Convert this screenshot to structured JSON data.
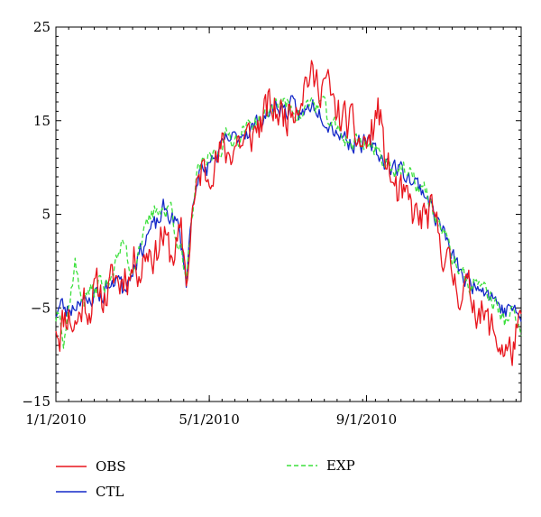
{
  "chart_data": {
    "type": "line",
    "title": "",
    "xlabel": "",
    "ylabel": "",
    "x_ticks": [
      "1/1/2010",
      "5/1/2010",
      "9/1/2010"
    ],
    "x_tick_days": [
      0,
      120,
      243
    ],
    "y_ticks": [
      25,
      15,
      5,
      -5,
      -15
    ],
    "y_tick_labels": [
      "25",
      "15",
      "5",
      "−5",
      "−15"
    ],
    "xlim": [
      "1/1/2010",
      "12/31/2010"
    ],
    "ylim": [
      -15,
      25
    ],
    "grid": false,
    "legend": "bottom",
    "series": [
      {
        "name": "OBS",
        "color": "#e8141c",
        "dash": "solid",
        "anchors": [
          [
            0,
            -6.5
          ],
          [
            3,
            -7.5
          ],
          [
            6,
            -6
          ],
          [
            10,
            -5.5
          ],
          [
            14,
            -7
          ],
          [
            18,
            -6
          ],
          [
            22,
            -4
          ],
          [
            26,
            -5
          ],
          [
            30,
            -3.5
          ],
          [
            34,
            -3
          ],
          [
            38,
            -4
          ],
          [
            42,
            -3
          ],
          [
            46,
            -1.5
          ],
          [
            50,
            -2.5
          ],
          [
            54,
            -1
          ],
          [
            58,
            -1.5
          ],
          [
            62,
            0.5
          ],
          [
            66,
            -1
          ],
          [
            70,
            1
          ],
          [
            74,
            1.5
          ],
          [
            78,
            0.5
          ],
          [
            82,
            3
          ],
          [
            86,
            2
          ],
          [
            90,
            0.5
          ],
          [
            94,
            1.5
          ],
          [
            98,
            2.5
          ],
          [
            100,
            0.5
          ],
          [
            103,
            -2
          ],
          [
            106,
            5
          ],
          [
            110,
            7
          ],
          [
            114,
            10
          ],
          [
            118,
            9
          ],
          [
            122,
            11
          ],
          [
            126,
            10.5
          ],
          [
            130,
            12
          ],
          [
            134,
            11.5
          ],
          [
            138,
            12
          ],
          [
            142,
            13
          ],
          [
            146,
            12.5
          ],
          [
            150,
            13
          ],
          [
            154,
            13.5
          ],
          [
            158,
            14.5
          ],
          [
            162,
            15
          ],
          [
            166,
            16.5
          ],
          [
            170,
            16
          ],
          [
            174,
            16
          ],
          [
            178,
            15.5
          ],
          [
            182,
            16
          ],
          [
            186,
            17
          ],
          [
            190,
            17.5
          ],
          [
            194,
            19
          ],
          [
            198,
            20
          ],
          [
            202,
            19
          ],
          [
            206,
            19
          ],
          [
            210,
            19.5
          ],
          [
            214,
            18
          ],
          [
            218,
            16
          ],
          [
            222,
            15.5
          ],
          [
            226,
            15
          ],
          [
            230,
            14.5
          ],
          [
            234,
            13.5
          ],
          [
            238,
            12.5
          ],
          [
            242,
            12.5
          ],
          [
            246,
            13
          ],
          [
            250,
            15
          ],
          [
            252,
            16.5
          ],
          [
            254,
            15
          ],
          [
            256,
            12
          ],
          [
            260,
            10
          ],
          [
            264,
            8
          ],
          [
            268,
            7
          ],
          [
            272,
            6.5
          ],
          [
            276,
            6
          ],
          [
            280,
            5
          ],
          [
            284,
            4.5
          ],
          [
            288,
            4.5
          ],
          [
            292,
            5
          ],
          [
            296,
            4
          ],
          [
            300,
            2.5
          ],
          [
            304,
            1
          ],
          [
            308,
            -1
          ],
          [
            312,
            -2
          ],
          [
            316,
            -3
          ],
          [
            320,
            -3
          ],
          [
            324,
            -3.5
          ],
          [
            328,
            -4.5
          ],
          [
            332,
            -5
          ],
          [
            336,
            -6.5
          ],
          [
            340,
            -7
          ],
          [
            344,
            -8
          ],
          [
            348,
            -9
          ],
          [
            352,
            -9.5
          ],
          [
            356,
            -10
          ],
          [
            360,
            -8
          ],
          [
            364,
            -7.5
          ]
        ],
        "seed": 11,
        "noise": 1.9
      },
      {
        "name": "CTL",
        "color": "#1428c8",
        "dash": "solid",
        "anchors": [
          [
            0,
            -5.5
          ],
          [
            4,
            -4.5
          ],
          [
            8,
            -5.5
          ],
          [
            12,
            -5
          ],
          [
            16,
            -4.5
          ],
          [
            20,
            -3.5
          ],
          [
            24,
            -5
          ],
          [
            28,
            -4
          ],
          [
            32,
            -3
          ],
          [
            36,
            -4
          ],
          [
            40,
            -2.5
          ],
          [
            44,
            -3
          ],
          [
            48,
            -1
          ],
          [
            52,
            -3
          ],
          [
            56,
            -2
          ],
          [
            60,
            -0.5
          ],
          [
            64,
            0.5
          ],
          [
            68,
            1.5
          ],
          [
            72,
            3
          ],
          [
            76,
            3.5
          ],
          [
            80,
            4
          ],
          [
            84,
            5.5
          ],
          [
            88,
            5
          ],
          [
            92,
            4.5
          ],
          [
            96,
            3.5
          ],
          [
            100,
            0
          ],
          [
            102,
            -2
          ],
          [
            105,
            3
          ],
          [
            108,
            7
          ],
          [
            112,
            10
          ],
          [
            116,
            9
          ],
          [
            120,
            10.5
          ],
          [
            124,
            11
          ],
          [
            128,
            11.5
          ],
          [
            132,
            12.5
          ],
          [
            136,
            13
          ],
          [
            140,
            13
          ],
          [
            144,
            13.5
          ],
          [
            148,
            14
          ],
          [
            152,
            14
          ],
          [
            156,
            14.5
          ],
          [
            160,
            15
          ],
          [
            164,
            15.5
          ],
          [
            168,
            16
          ],
          [
            172,
            16.5
          ],
          [
            176,
            16.5
          ],
          [
            180,
            16
          ],
          [
            184,
            16.5
          ],
          [
            188,
            16
          ],
          [
            192,
            15.5
          ],
          [
            196,
            16
          ],
          [
            200,
            17
          ],
          [
            204,
            16.5
          ],
          [
            208,
            16
          ],
          [
            212,
            15
          ],
          [
            216,
            14.5
          ],
          [
            220,
            14
          ],
          [
            224,
            13.5
          ],
          [
            228,
            13
          ],
          [
            232,
            12.5
          ],
          [
            236,
            13
          ],
          [
            240,
            12.5
          ],
          [
            244,
            12.5
          ],
          [
            248,
            12
          ],
          [
            252,
            11.5
          ],
          [
            256,
            11
          ],
          [
            260,
            10.5
          ],
          [
            264,
            10
          ],
          [
            268,
            10
          ],
          [
            272,
            9.5
          ],
          [
            276,
            9
          ],
          [
            280,
            8.5
          ],
          [
            284,
            8
          ],
          [
            288,
            7.5
          ],
          [
            292,
            6.5
          ],
          [
            296,
            5
          ],
          [
            300,
            4
          ],
          [
            304,
            3
          ],
          [
            308,
            1
          ],
          [
            312,
            0
          ],
          [
            316,
            -1
          ],
          [
            320,
            -2
          ],
          [
            324,
            -2.5
          ],
          [
            328,
            -2.5
          ],
          [
            332,
            -2
          ],
          [
            336,
            -3
          ],
          [
            340,
            -3.5
          ],
          [
            344,
            -4
          ],
          [
            348,
            -5
          ],
          [
            352,
            -5.5
          ],
          [
            356,
            -4.5
          ],
          [
            360,
            -6
          ],
          [
            364,
            -6
          ]
        ],
        "seed": 23,
        "noise": 0.9
      },
      {
        "name": "EXP",
        "color": "#3ce03c",
        "dash": "dashed",
        "anchors": [
          [
            0,
            -6
          ],
          [
            3,
            -4.5
          ],
          [
            6,
            -8.5
          ],
          [
            9,
            -6
          ],
          [
            12,
            -3
          ],
          [
            15,
            0
          ],
          [
            18,
            -3
          ],
          [
            22,
            -4
          ],
          [
            26,
            -3
          ],
          [
            30,
            -3.5
          ],
          [
            34,
            -2
          ],
          [
            38,
            -3
          ],
          [
            42,
            -1.5
          ],
          [
            46,
            -0.5
          ],
          [
            50,
            1
          ],
          [
            54,
            2
          ],
          [
            58,
            -1
          ],
          [
            62,
            0
          ],
          [
            66,
            2
          ],
          [
            70,
            3
          ],
          [
            74,
            4.5
          ],
          [
            78,
            5.5
          ],
          [
            82,
            6
          ],
          [
            86,
            5
          ],
          [
            90,
            6
          ],
          [
            94,
            3
          ],
          [
            98,
            1
          ],
          [
            100,
            -1
          ],
          [
            102,
            -3
          ],
          [
            105,
            2
          ],
          [
            108,
            7
          ],
          [
            112,
            10
          ],
          [
            116,
            10
          ],
          [
            120,
            11
          ],
          [
            124,
            11.5
          ],
          [
            128,
            12
          ],
          [
            132,
            13
          ],
          [
            136,
            13.5
          ],
          [
            140,
            13
          ],
          [
            144,
            13.5
          ],
          [
            148,
            14
          ],
          [
            152,
            14.5
          ],
          [
            156,
            15
          ],
          [
            160,
            15
          ],
          [
            164,
            15.5
          ],
          [
            168,
            16
          ],
          [
            172,
            17
          ],
          [
            176,
            17
          ],
          [
            180,
            16.5
          ],
          [
            184,
            16.5
          ],
          [
            188,
            16
          ],
          [
            192,
            15.5
          ],
          [
            196,
            16.5
          ],
          [
            200,
            17
          ],
          [
            204,
            16.5
          ],
          [
            208,
            17
          ],
          [
            212,
            15.5
          ],
          [
            216,
            14.5
          ],
          [
            220,
            14
          ],
          [
            224,
            13.5
          ],
          [
            228,
            13
          ],
          [
            232,
            12.5
          ],
          [
            236,
            13
          ],
          [
            240,
            12.5
          ],
          [
            244,
            13
          ],
          [
            248,
            12
          ],
          [
            252,
            11.5
          ],
          [
            256,
            11
          ],
          [
            260,
            10.5
          ],
          [
            264,
            10
          ],
          [
            268,
            10
          ],
          [
            272,
            9.5
          ],
          [
            276,
            9
          ],
          [
            280,
            8.5
          ],
          [
            284,
            8
          ],
          [
            288,
            7.5
          ],
          [
            292,
            6.5
          ],
          [
            296,
            5
          ],
          [
            300,
            4
          ],
          [
            304,
            3
          ],
          [
            308,
            1
          ],
          [
            312,
            0
          ],
          [
            316,
            -1
          ],
          [
            320,
            -2
          ],
          [
            324,
            -2.5
          ],
          [
            328,
            -2.5
          ],
          [
            332,
            -2
          ],
          [
            336,
            -3
          ],
          [
            340,
            -4
          ],
          [
            344,
            -4.5
          ],
          [
            348,
            -6
          ],
          [
            352,
            -6.5
          ],
          [
            356,
            -5
          ],
          [
            360,
            -7
          ],
          [
            364,
            -7.5
          ]
        ],
        "seed": 37,
        "noise": 0.9
      }
    ]
  }
}
